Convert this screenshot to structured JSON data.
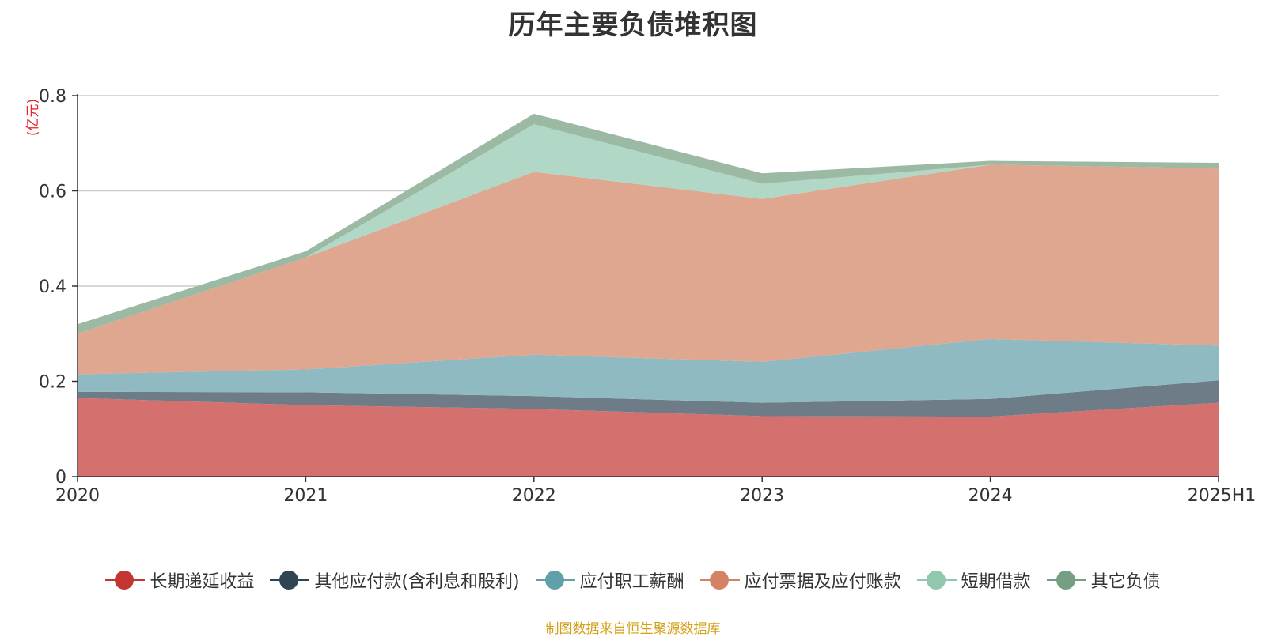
{
  "chart_data": {
    "type": "area",
    "stacked": true,
    "title": "历年主要负债堆积图",
    "unit_label": "(亿元)",
    "categories": [
      "2020",
      "2021",
      "2022",
      "2023",
      "2024",
      "2025H1"
    ],
    "ylim": [
      0,
      0.8
    ],
    "yticks": [
      "0",
      "0.2",
      "0.4",
      "0.6",
      "0.8"
    ],
    "ytick_values": [
      0,
      0.2,
      0.4,
      0.6,
      0.8
    ],
    "grid": true,
    "legend_position": "bottom",
    "series": [
      {
        "name": "长期递延收益",
        "color": "#c23531",
        "fill": "#d4706d",
        "values": [
          0.165,
          0.15,
          0.142,
          0.127,
          0.126,
          0.155
        ]
      },
      {
        "name": "其他应付款(含利息和股利)",
        "color": "#2f4554",
        "fill": "#6e7c88",
        "values": [
          0.013,
          0.027,
          0.027,
          0.028,
          0.037,
          0.047
        ]
      },
      {
        "name": "应付职工薪酬",
        "color": "#61a0a8",
        "fill": "#90bac1",
        "values": [
          0.037,
          0.048,
          0.087,
          0.086,
          0.126,
          0.073
        ]
      },
      {
        "name": "应付票据及应付账款",
        "color": "#d48265",
        "fill": "#dfa690",
        "values": [
          0.085,
          0.235,
          0.384,
          0.342,
          0.366,
          0.372
        ]
      },
      {
        "name": "短期借款",
        "color": "#91c7ae",
        "fill": "#b1d8c7",
        "values": [
          0.0,
          0.0,
          0.1,
          0.032,
          0.0,
          0.0
        ]
      },
      {
        "name": "其它负债",
        "color": "#749f83",
        "fill": "#9cb9a4",
        "values": [
          0.02,
          0.013,
          0.022,
          0.022,
          0.008,
          0.012
        ]
      }
    ]
  },
  "source_note": "制图数据来自恒生聚源数据库"
}
